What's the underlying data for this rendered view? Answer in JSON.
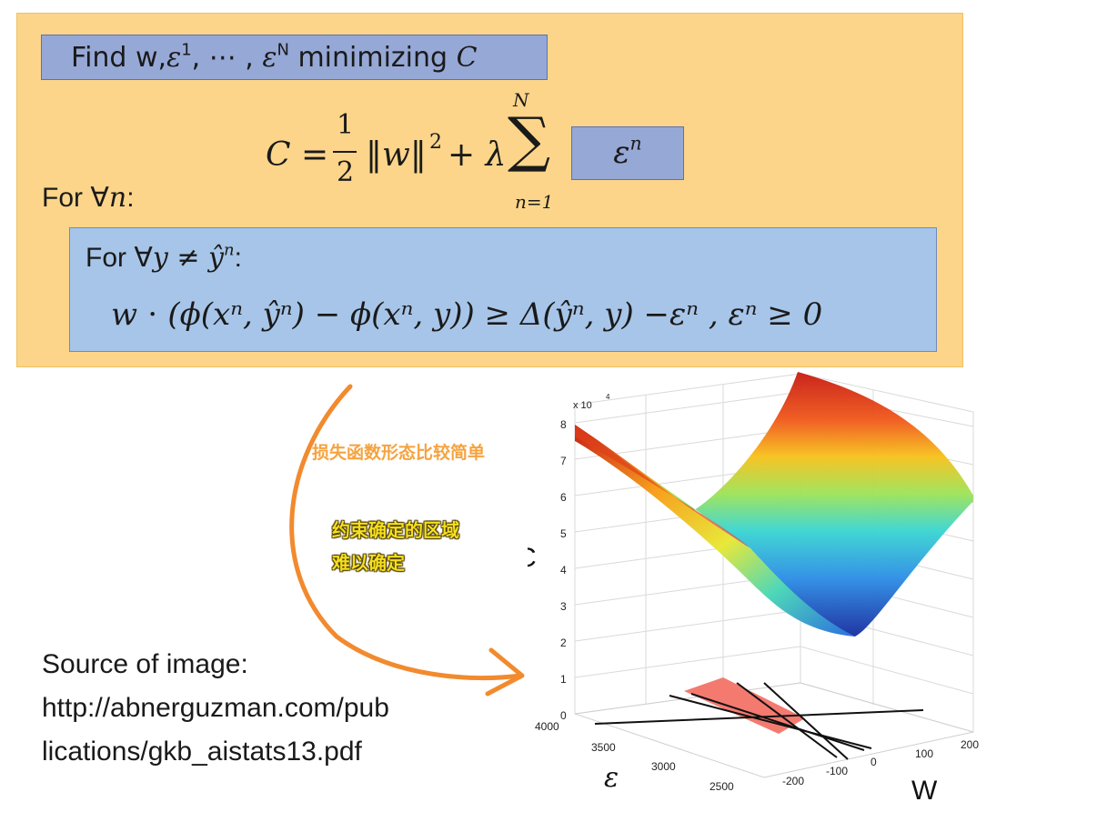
{
  "panel": {
    "find_prefix": "Find w,",
    "find_eps1": "ε",
    "find_eps1_sup": "1",
    "find_dots": ", ⋯ , ",
    "find_epsN": "ε",
    "find_epsN_sup": "N",
    "find_suffix": " minimizing ",
    "find_C": "C",
    "c_lhs": "C = ",
    "c_half_num": "1",
    "c_half_den": "2",
    "c_norm": "‖w‖",
    "c_sq": "2",
    "c_plus": " + λ",
    "sum_symbol": "∑",
    "sum_top": "N",
    "sum_bottom": "n=1",
    "eps_box": "ε",
    "eps_box_sup": "n",
    "for_all_n": "For ∀",
    "for_all_n_var": "n",
    "for_all_n_colon": ":",
    "for_all_y": "For ∀",
    "for_all_y_expr": "y ≠ ŷ",
    "for_all_y_sup": "n",
    "for_all_y_colon": ":",
    "constraint": "w ⋅ (ϕ(xⁿ, ŷⁿ) − ϕ(xⁿ, y)) ≥ Δ(ŷⁿ, y) −εⁿ ,  εⁿ ≥ 0"
  },
  "annotations": {
    "loss_note": "损失函数形态比较简单",
    "constraint_note_1": "约束确定的区域",
    "constraint_note_2": "难以确定"
  },
  "source": {
    "line1": "Source of image:",
    "line2": "http://abnerguzman.com/pub",
    "line3": "lications/gkb_aistats13.pdf"
  },
  "plot": {
    "z_label": "C",
    "z_scale": "x 10",
    "z_scale_exp": "4",
    "z_ticks": [
      "8",
      "7",
      "6",
      "5",
      "4",
      "3",
      "2",
      "1",
      "0"
    ],
    "eps_label": "ε",
    "eps_ticks": [
      "4000",
      "3500",
      "3000",
      "2500"
    ],
    "w_label": "W",
    "w_ticks": [
      "-200",
      "-100",
      "0",
      "100",
      "200"
    ],
    "colors": {
      "region": "#f47a70",
      "surface_high": "#c81e16",
      "surface_mid": "#3cd6d2",
      "surface_low": "#1a2fa0"
    }
  }
}
